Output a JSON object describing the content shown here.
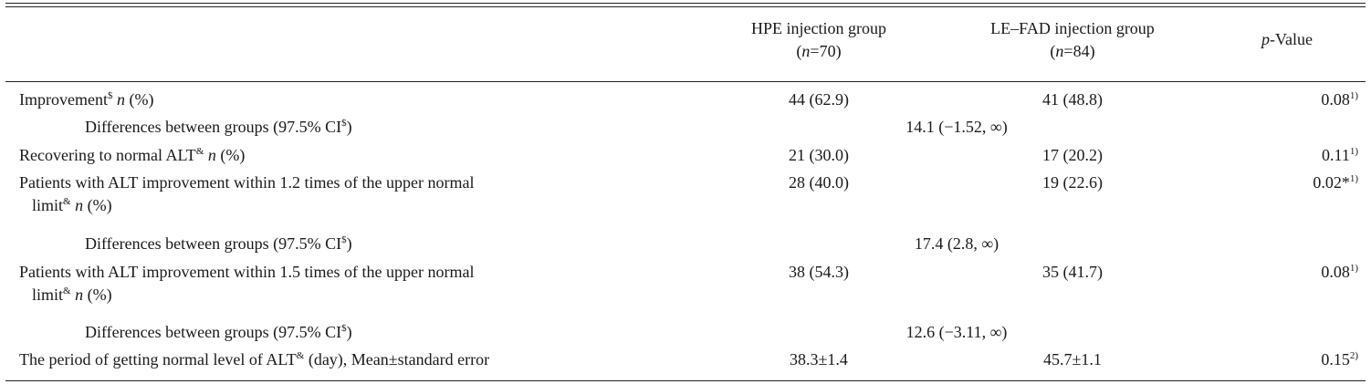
{
  "header": {
    "hpe_group": "HPE injection group",
    "hpe_n": "(n=70)",
    "hpe_n_prefix": "(",
    "hpe_n_italic": "n",
    "hpe_n_suffix": "=70)",
    "le_group": "LE–FAD injection group",
    "le_n_prefix": "(",
    "le_n_italic": "n",
    "le_n_suffix": "=84)",
    "p_italic": "p",
    "p_rest": "-Value"
  },
  "rows": [
    {
      "label_main": "Improvement",
      "label_sup": "$",
      "label_n": "n",
      "label_tail": " (%)",
      "hpe": "44 (62.9)",
      "le": "41 (48.8)",
      "p": "0.08",
      "p_sup": "1)"
    },
    {
      "label_main": "Differences between groups (97.5% CI",
      "label_sup": "$",
      "label_tail": ")",
      "diff": "14.1 (−1.52, ∞)"
    },
    {
      "label_main": "Recovering to normal ALT",
      "label_sup": "&",
      "label_n": "n",
      "label_tail": " (%)",
      "hpe": "21 (30.0)",
      "le": "17 (20.2)",
      "p": "0.11",
      "p_sup": "1)"
    },
    {
      "label_main": "Patients with ALT improvement within 1.2 times of the upper normal",
      "label_line2": "limit",
      "label_sup": "&",
      "label_n": "n",
      "label_tail": " (%)",
      "hpe": "28 (40.0)",
      "le": "19 (22.6)",
      "p": "0.02*",
      "p_sup": "1)"
    },
    {
      "label_main": "Differences between groups (97.5% CI",
      "label_sup": "$",
      "label_tail": ")",
      "diff": "17.4 (2.8, ∞)"
    },
    {
      "label_main": "Patients with ALT improvement within 1.5 times of the upper normal",
      "label_line2": "limit",
      "label_sup": "&",
      "label_n": "n",
      "label_tail": " (%)",
      "hpe": "38 (54.3)",
      "le": "35 (41.7)",
      "p": "0.08",
      "p_sup": "1)"
    },
    {
      "label_main": "Differences between groups (97.5% CI",
      "label_sup": "$",
      "label_tail": ")",
      "diff": "12.6 (−3.11, ∞)"
    },
    {
      "label_main": "The period of getting normal level of ALT",
      "label_sup": "&",
      "label_tail": " (day), Mean±standard error",
      "hpe": "38.3±1.4",
      "le": "45.7±1.1",
      "p": "0.15",
      "p_sup": "2)"
    }
  ]
}
